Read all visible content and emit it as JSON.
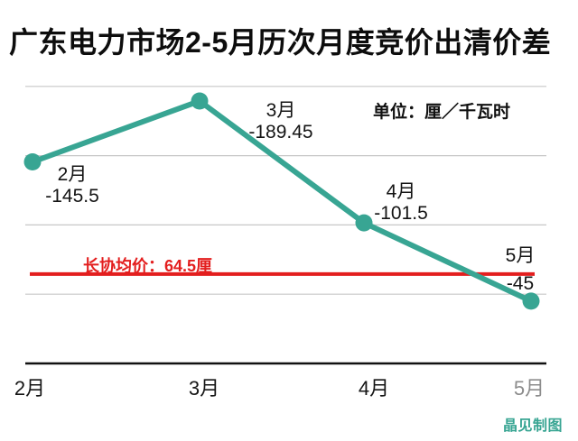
{
  "title": "广东电力市场2-5月历次月度竞价出清价差",
  "unit_label": "单位：厘／千瓦时",
  "watermark": "晶见制图",
  "reference_line": {
    "label": "长协均价：64.5厘",
    "value": -64.5
  },
  "x_ticks": [
    "2月",
    "3月",
    "4月",
    "5月"
  ],
  "colors": {
    "line": "#38a593",
    "reference_line": "#e31e1e",
    "grid": "#c7c7c7",
    "axis": "#111111",
    "text": "#141414",
    "muted_tick": "#8c8c8c"
  },
  "chart_data": {
    "type": "line",
    "title": "广东电力市场2-5月历次月度竞价出清价差",
    "unit": "厘／千瓦时",
    "categories": [
      "2月",
      "3月",
      "4月",
      "5月"
    ],
    "values": [
      -145.5,
      -189.45,
      -101.5,
      -45
    ],
    "value_labels": [
      "-145.5",
      "-189.45",
      "-101.5",
      "-45"
    ],
    "series": [
      {
        "name": "月度竞价出清价差",
        "values": [
          -145.5,
          -189.45,
          -101.5,
          -45
        ]
      }
    ],
    "reference_line": {
      "label": "长协均价：64.5厘",
      "value": -64.5
    },
    "y_axis": {
      "min": -200,
      "max": 0,
      "gridline_interval": 50,
      "inverted_display": true,
      "tick_labels_visible": false
    },
    "x_axis": {
      "ticks": [
        "2月",
        "3月",
        "4月",
        "5月"
      ]
    },
    "grid": true,
    "legend_position": "none",
    "annotations": [
      "单位：厘／千瓦时",
      "长协均价：64.5厘"
    ]
  }
}
